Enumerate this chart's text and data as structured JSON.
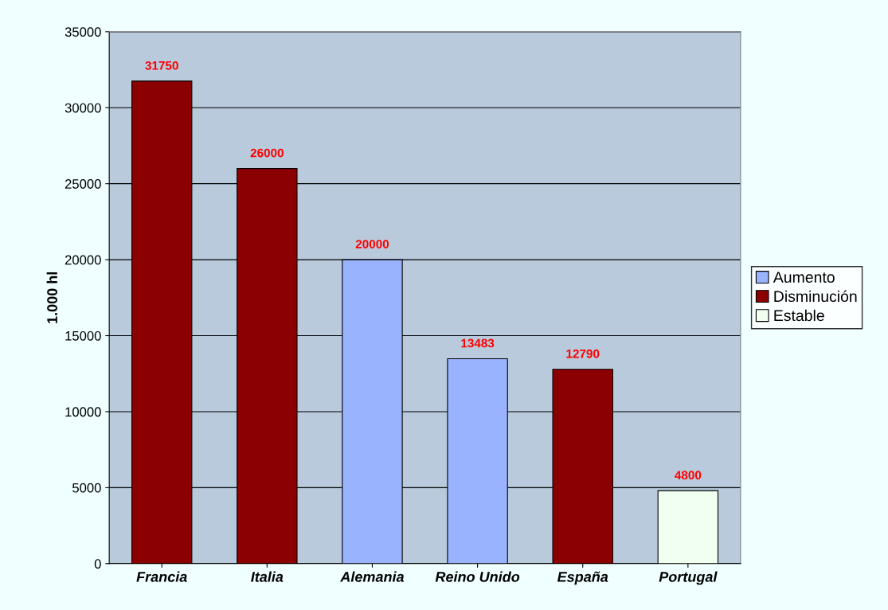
{
  "chart_data": {
    "type": "bar",
    "stacked": true,
    "ylabel": "1.000 hl",
    "categories": [
      "Francia",
      "Italia",
      "Alemania",
      "Reino Unido",
      "España",
      "Portugal"
    ],
    "series": [
      {
        "name": "Aumento",
        "color": "#99b3ff",
        "values": [
          null,
          null,
          20000,
          13483,
          null,
          null
        ]
      },
      {
        "name": "Disminución",
        "color": "#8b0000",
        "values": [
          31750,
          26000,
          null,
          null,
          12790,
          null
        ]
      },
      {
        "name": "Estable",
        "color": "#f0fff0",
        "values": [
          null,
          null,
          null,
          null,
          null,
          4800
        ]
      }
    ],
    "ylim": [
      0,
      35000
    ],
    "yticks": [
      0,
      5000,
      10000,
      15000,
      20000,
      25000,
      30000,
      35000
    ],
    "grid": "y",
    "legend": "right",
    "data_labels": true
  }
}
